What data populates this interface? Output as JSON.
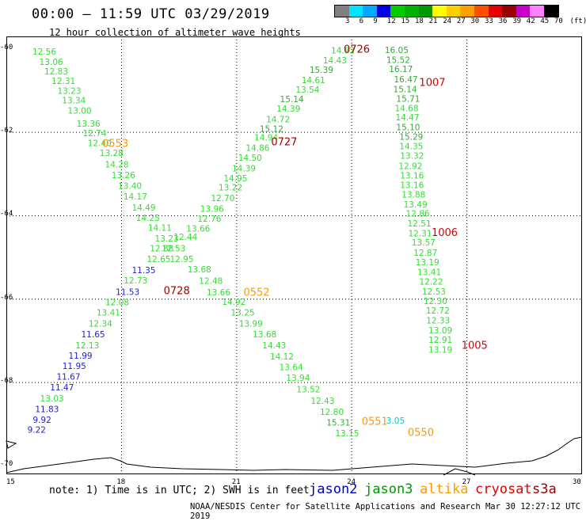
{
  "title": "00:00 – 11:59 UTC 03/29/2019",
  "subtitle": "12 hour collection of altimeter wave heights",
  "legend": {
    "colors": [
      "#808080",
      "#00e5ff",
      "#00aaff",
      "#0000e6",
      "#00cc00",
      "#00b000",
      "#009900",
      "#ffff00",
      "#ffd000",
      "#ffa000",
      "#ff5000",
      "#e60000",
      "#990000",
      "#c800c8",
      "#ff80ff",
      "#000000"
    ],
    "labels": [
      "3",
      "6",
      "9",
      "12",
      "15",
      "18",
      "21",
      "24",
      "27",
      "30",
      "33",
      "36",
      "39",
      "42",
      "45",
      "70",
      "(ft)"
    ]
  },
  "axes": {
    "x_ticks": [
      "15",
      "18",
      "21",
      "24",
      "27",
      "30"
    ],
    "y_ticks": [
      "-60",
      "-62",
      "-64",
      "-66",
      "-68",
      "-70"
    ]
  },
  "note": "note: 1) Time is in UTC; 2) SWH is in feet",
  "missions": [
    {
      "name": "jason2",
      "color": "#0000cc"
    },
    {
      "name": "jason3",
      "color": "#009900"
    },
    {
      "name": "altika",
      "color": "#ff9900"
    },
    {
      "name": "cryosat",
      "color": "#dd0000"
    },
    {
      "name": "s3a",
      "color": "#990000"
    }
  ],
  "credit": "NOAA/NESDIS Center for Satellite Applications and Research    Mar 30 12:27:12 UTC 2019",
  "observations": [
    {
      "lon": 15.99,
      "lat": -60.08,
      "swh": "12.56",
      "color": "#33dd33"
    },
    {
      "lon": 16.17,
      "lat": -60.33,
      "swh": "13.06",
      "color": "#33dd33"
    },
    {
      "lon": 16.3,
      "lat": -60.55,
      "swh": "12.83",
      "color": "#33dd33"
    },
    {
      "lon": 16.49,
      "lat": -60.78,
      "swh": "12.31",
      "color": "#33dd33"
    },
    {
      "lon": 16.64,
      "lat": -61.02,
      "swh": "13.23",
      "color": "#33dd33"
    },
    {
      "lon": 16.76,
      "lat": -61.25,
      "swh": "13.34",
      "color": "#33dd33"
    },
    {
      "lon": 16.91,
      "lat": -61.49,
      "swh": "13.00",
      "color": "#33dd33"
    },
    {
      "lon": 17.14,
      "lat": -61.81,
      "swh": "13.36",
      "color": "#33dd33"
    },
    {
      "lon": 17.3,
      "lat": -62.04,
      "swh": "12.74",
      "color": "#33dd33"
    },
    {
      "lon": 17.43,
      "lat": -62.27,
      "swh": "12.40",
      "color": "#33dd33"
    },
    {
      "lon": 17.74,
      "lat": -62.51,
      "swh": "13.28",
      "color": "#33dd33"
    },
    {
      "lon": 17.88,
      "lat": -62.79,
      "swh": "14.28",
      "color": "#33dd33"
    },
    {
      "lon": 18.05,
      "lat": -63.04,
      "swh": "13.26",
      "color": "#33dd33"
    },
    {
      "lon": 18.22,
      "lat": -63.3,
      "swh": "13.40",
      "color": "#33dd33"
    },
    {
      "lon": 18.36,
      "lat": -63.55,
      "swh": "14.17",
      "color": "#33dd33"
    },
    {
      "lon": 18.58,
      "lat": -63.82,
      "swh": "14.49",
      "color": "#33dd33"
    },
    {
      "lon": 18.69,
      "lat": -64.07,
      "swh": "14.25",
      "color": "#33dd33"
    },
    {
      "lon": 19.0,
      "lat": -64.3,
      "swh": "14.11",
      "color": "#33dd33"
    },
    {
      "lon": 19.18,
      "lat": -64.56,
      "swh": "13.23",
      "color": "#33dd33"
    },
    {
      "lon": 19.05,
      "lat": -64.8,
      "swh": "12.88",
      "color": "#33dd33"
    },
    {
      "lon": 18.97,
      "lat": -65.05,
      "swh": "12.65",
      "color": "#33dd33"
    },
    {
      "lon": 18.58,
      "lat": -65.32,
      "swh": "11.35",
      "color": "#2222cc"
    },
    {
      "lon": 18.37,
      "lat": -65.57,
      "swh": "12.73",
      "color": "#33dd33"
    },
    {
      "lon": 18.16,
      "lat": -65.84,
      "swh": "11.53",
      "color": "#2222cc"
    },
    {
      "lon": 17.89,
      "lat": -66.09,
      "swh": "12.08",
      "color": "#33dd33"
    },
    {
      "lon": 17.66,
      "lat": -66.34,
      "swh": "13.41",
      "color": "#33dd33"
    },
    {
      "lon": 17.45,
      "lat": -66.6,
      "swh": "12.34",
      "color": "#33dd33"
    },
    {
      "lon": 17.26,
      "lat": -66.86,
      "swh": "11.65",
      "color": "#2222cc"
    },
    {
      "lon": 17.11,
      "lat": -67.12,
      "swh": "12.13",
      "color": "#33dd33"
    },
    {
      "lon": 16.93,
      "lat": -67.37,
      "swh": "11.99",
      "color": "#2222cc"
    },
    {
      "lon": 16.77,
      "lat": -67.62,
      "swh": "11.95",
      "color": "#2222cc"
    },
    {
      "lon": 16.62,
      "lat": -67.87,
      "swh": "11.67",
      "color": "#2222cc"
    },
    {
      "lon": 16.45,
      "lat": -68.13,
      "swh": "11.47",
      "color": "#2222cc"
    },
    {
      "lon": 16.19,
      "lat": -68.4,
      "swh": "13.03",
      "color": "#33dd33"
    },
    {
      "lon": 16.06,
      "lat": -68.65,
      "swh": "11.83",
      "color": "#2222cc"
    },
    {
      "lon": 15.93,
      "lat": -68.91,
      "swh": "9.92",
      "color": "#2222cc"
    },
    {
      "lon": 15.79,
      "lat": -69.15,
      "swh": "9.22",
      "color": "#2222cc"
    },
    {
      "lon": 23.77,
      "lat": -60.05,
      "swh": "14.82",
      "color": "#33dd33"
    },
    {
      "lon": 23.56,
      "lat": -60.29,
      "swh": "14.43",
      "color": "#33dd33"
    },
    {
      "lon": 23.21,
      "lat": -60.52,
      "swh": "15.39",
      "color": "#33aa33"
    },
    {
      "lon": 23.0,
      "lat": -60.76,
      "swh": "14.61",
      "color": "#33dd33"
    },
    {
      "lon": 22.85,
      "lat": -60.99,
      "swh": "13.54",
      "color": "#33dd33"
    },
    {
      "lon": 22.44,
      "lat": -61.22,
      "swh": "15.14",
      "color": "#33aa33"
    },
    {
      "lon": 22.35,
      "lat": -61.45,
      "swh": "14.39",
      "color": "#33dd33"
    },
    {
      "lon": 22.08,
      "lat": -61.7,
      "swh": "14.72",
      "color": "#33dd33"
    },
    {
      "lon": 21.91,
      "lat": -61.93,
      "swh": "15.12",
      "color": "#33aa33"
    },
    {
      "lon": 21.77,
      "lat": -62.14,
      "swh": "14.94",
      "color": "#33dd33"
    },
    {
      "lon": 21.55,
      "lat": -62.39,
      "swh": "14.86",
      "color": "#33dd33"
    },
    {
      "lon": 21.35,
      "lat": -62.62,
      "swh": "14.50",
      "color": "#33dd33"
    },
    {
      "lon": 21.19,
      "lat": -62.88,
      "swh": "14.39",
      "color": "#33dd33"
    },
    {
      "lon": 20.97,
      "lat": -63.12,
      "swh": "14.95",
      "color": "#33dd33"
    },
    {
      "lon": 20.84,
      "lat": -63.34,
      "swh": "13.22",
      "color": "#33dd33"
    },
    {
      "lon": 20.64,
      "lat": -63.59,
      "swh": "12.70",
      "color": "#33dd33"
    },
    {
      "lon": 20.36,
      "lat": -63.85,
      "swh": "13.96",
      "color": "#33dd33"
    },
    {
      "lon": 20.29,
      "lat": -64.09,
      "swh": "12.76",
      "color": "#33dd33"
    },
    {
      "lon": 20.0,
      "lat": -64.32,
      "swh": "13.66",
      "color": "#33dd33"
    },
    {
      "lon": 19.67,
      "lat": -64.52,
      "swh": "12.44",
      "color": "#33dd33"
    },
    {
      "lon": 19.36,
      "lat": -64.8,
      "swh": "12.53",
      "color": "#33dd33"
    },
    {
      "lon": 19.57,
      "lat": -65.05,
      "swh": "12.95",
      "color": "#33dd33"
    },
    {
      "lon": 20.03,
      "lat": -65.3,
      "swh": "13.68",
      "color": "#33dd33"
    },
    {
      "lon": 20.33,
      "lat": -65.58,
      "swh": "12.48",
      "color": "#33dd33"
    },
    {
      "lon": 20.53,
      "lat": -65.85,
      "swh": "13.66",
      "color": "#33dd33"
    },
    {
      "lon": 20.93,
      "lat": -66.08,
      "swh": "14.92",
      "color": "#33dd33"
    },
    {
      "lon": 21.16,
      "lat": -66.34,
      "swh": "13.25",
      "color": "#33dd33"
    },
    {
      "lon": 21.37,
      "lat": -66.6,
      "swh": "13.99",
      "color": "#33dd33"
    },
    {
      "lon": 21.73,
      "lat": -66.86,
      "swh": "13.68",
      "color": "#33dd33"
    },
    {
      "lon": 21.98,
      "lat": -67.12,
      "swh": "14.43",
      "color": "#33dd33"
    },
    {
      "lon": 22.18,
      "lat": -67.39,
      "swh": "14.12",
      "color": "#33dd33"
    },
    {
      "lon": 22.42,
      "lat": -67.65,
      "swh": "13.64",
      "color": "#33dd33"
    },
    {
      "lon": 22.6,
      "lat": -67.9,
      "swh": "13.94",
      "color": "#33dd33"
    },
    {
      "lon": 22.87,
      "lat": -68.18,
      "swh": "13.52",
      "color": "#33dd33"
    },
    {
      "lon": 23.24,
      "lat": -68.45,
      "swh": "12.43",
      "color": "#33dd33"
    },
    {
      "lon": 23.48,
      "lat": -68.72,
      "swh": "12.80",
      "color": "#33dd33"
    },
    {
      "lon": 23.65,
      "lat": -68.98,
      "swh": "15.31",
      "color": "#33aa33"
    },
    {
      "lon": 23.88,
      "lat": -69.23,
      "swh": "13.15",
      "color": "#33dd33"
    },
    {
      "lon": 25.17,
      "lat": -60.04,
      "swh": "16.05",
      "color": "#33aa33"
    },
    {
      "lon": 25.21,
      "lat": -60.28,
      "swh": "15.52",
      "color": "#33aa33"
    },
    {
      "lon": 25.28,
      "lat": -60.5,
      "swh": "16.17",
      "color": "#33aa33"
    },
    {
      "lon": 25.41,
      "lat": -60.74,
      "swh": "16.47",
      "color": "#33aa33"
    },
    {
      "lon": 25.39,
      "lat": -60.98,
      "swh": "15.14",
      "color": "#33aa33"
    },
    {
      "lon": 25.47,
      "lat": -61.21,
      "swh": "15.71",
      "color": "#33aa33"
    },
    {
      "lon": 25.43,
      "lat": -61.44,
      "swh": "14.68",
      "color": "#33dd33"
    },
    {
      "lon": 25.45,
      "lat": -61.66,
      "swh": "14.47",
      "color": "#33dd33"
    },
    {
      "lon": 25.47,
      "lat": -61.89,
      "swh": "15.10",
      "color": "#33aa33"
    },
    {
      "lon": 25.55,
      "lat": -62.12,
      "swh": "15.29",
      "color": "#33aa33"
    },
    {
      "lon": 25.55,
      "lat": -62.35,
      "swh": "14.35",
      "color": "#33dd33"
    },
    {
      "lon": 25.57,
      "lat": -62.58,
      "swh": "13.32",
      "color": "#33dd33"
    },
    {
      "lon": 25.53,
      "lat": -62.82,
      "swh": "12.92",
      "color": "#33dd33"
    },
    {
      "lon": 25.57,
      "lat": -63.05,
      "swh": "13.16",
      "color": "#33dd33"
    },
    {
      "lon": 25.57,
      "lat": -63.28,
      "swh": "13.16",
      "color": "#33dd33"
    },
    {
      "lon": 25.61,
      "lat": -63.51,
      "swh": "13.88",
      "color": "#33dd33"
    },
    {
      "lon": 25.66,
      "lat": -63.74,
      "swh": "13.49",
      "color": "#33dd33"
    },
    {
      "lon": 25.72,
      "lat": -63.96,
      "swh": "12.86",
      "color": "#33dd33"
    },
    {
      "lon": 25.76,
      "lat": -64.2,
      "swh": "12.51",
      "color": "#33dd33"
    },
    {
      "lon": 25.78,
      "lat": -64.44,
      "swh": "12.31",
      "color": "#33dd33"
    },
    {
      "lon": 25.87,
      "lat": -64.66,
      "swh": "13.57",
      "color": "#33dd33"
    },
    {
      "lon": 25.92,
      "lat": -64.9,
      "swh": "12.87",
      "color": "#33dd33"
    },
    {
      "lon": 25.97,
      "lat": -65.13,
      "swh": "13.19",
      "color": "#33dd33"
    },
    {
      "lon": 26.02,
      "lat": -65.37,
      "swh": "13.41",
      "color": "#33dd33"
    },
    {
      "lon": 26.07,
      "lat": -65.6,
      "swh": "12.22",
      "color": "#33dd33"
    },
    {
      "lon": 26.14,
      "lat": -65.83,
      "swh": "12.53",
      "color": "#33dd33"
    },
    {
      "lon": 26.18,
      "lat": -66.06,
      "swh": "12.30",
      "color": "#33dd33"
    },
    {
      "lon": 26.24,
      "lat": -66.29,
      "swh": "12.72",
      "color": "#33dd33"
    },
    {
      "lon": 26.25,
      "lat": -66.53,
      "swh": "12.33",
      "color": "#33dd33"
    },
    {
      "lon": 26.31,
      "lat": -66.76,
      "swh": "13.09",
      "color": "#33dd33"
    },
    {
      "lon": 26.31,
      "lat": -66.99,
      "swh": "12.91",
      "color": "#33dd33"
    },
    {
      "lon": 26.31,
      "lat": -67.23,
      "swh": "13.19",
      "color": "#33dd33"
    },
    {
      "lon": 25.14,
      "lat": -68.93,
      "swh": "3.05",
      "color": "#00cccc"
    }
  ],
  "track_times": [
    {
      "lon": 24.13,
      "lat": -60.02,
      "text": "0726",
      "color": "#990000"
    },
    {
      "lon": 26.1,
      "lat": -60.82,
      "text": "1007",
      "color": "#dd0000"
    },
    {
      "lon": 17.84,
      "lat": -62.28,
      "text": "0553",
      "color": "#ff9900"
    },
    {
      "lon": 22.24,
      "lat": -62.24,
      "text": "0727",
      "color": "#990000"
    },
    {
      "lon": 26.42,
      "lat": -64.42,
      "text": "1006",
      "color": "#dd0000"
    },
    {
      "lon": 19.44,
      "lat": -65.81,
      "text": "0728",
      "color": "#990000"
    },
    {
      "lon": 21.52,
      "lat": -65.85,
      "text": "0552",
      "color": "#ff9900"
    },
    {
      "lon": 27.2,
      "lat": -67.12,
      "text": "1005",
      "color": "#dd0000"
    },
    {
      "lon": 24.6,
      "lat": -68.95,
      "text": "0551",
      "color": "#ff9900"
    },
    {
      "lon": 25.8,
      "lat": -69.21,
      "text": "0550",
      "color": "#ff9900"
    }
  ]
}
